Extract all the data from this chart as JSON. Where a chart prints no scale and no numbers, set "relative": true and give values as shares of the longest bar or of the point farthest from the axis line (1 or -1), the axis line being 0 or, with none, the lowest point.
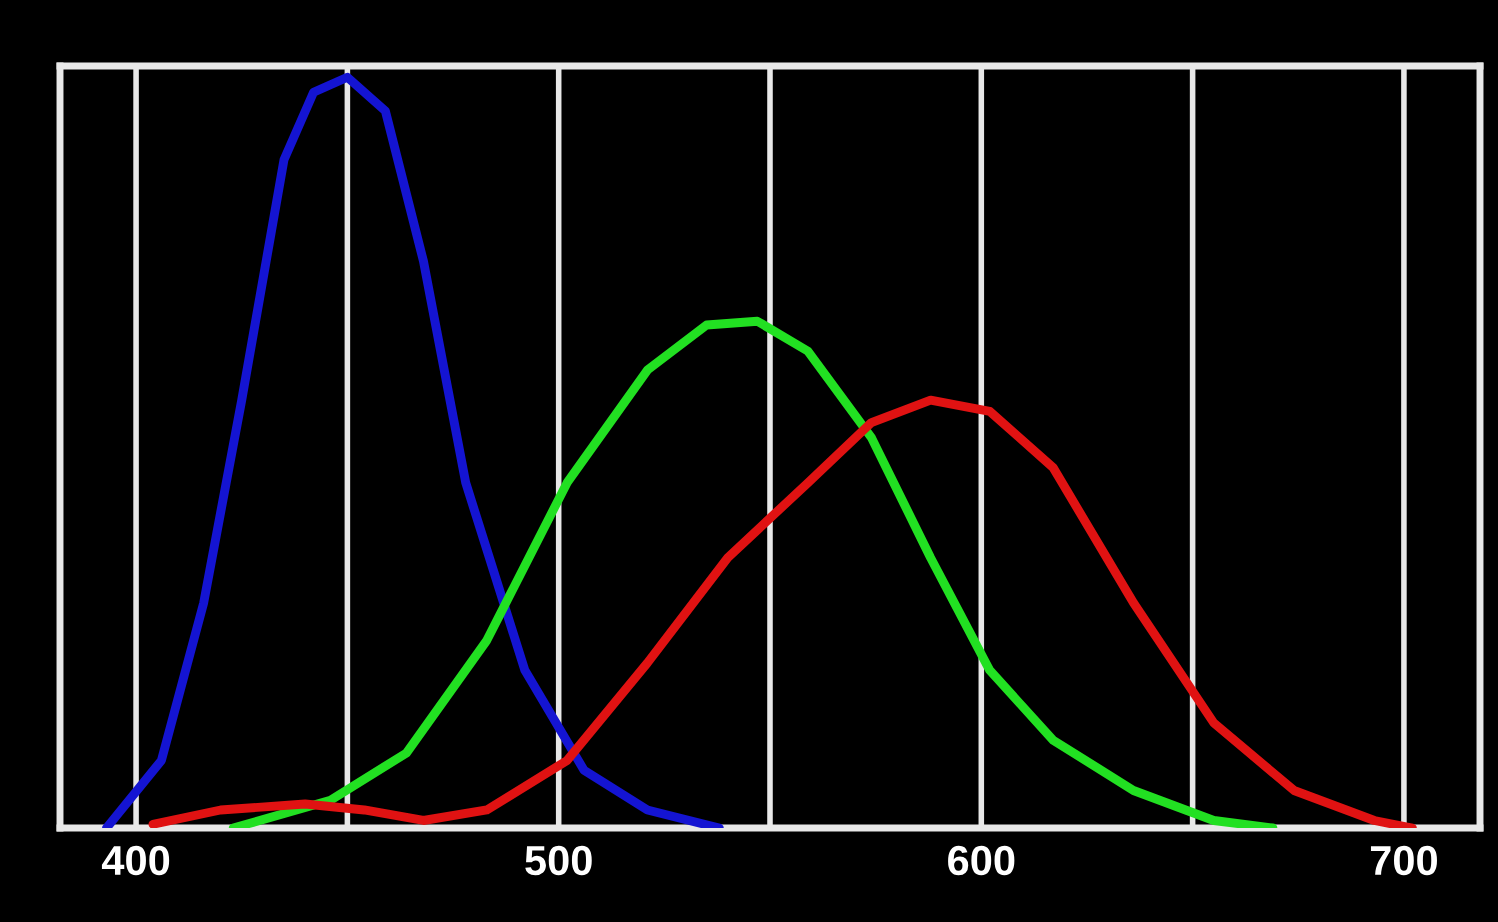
{
  "chart_data": {
    "type": "line",
    "relative": true,
    "xlim": [
      382,
      718
    ],
    "xticks": [
      400,
      {
        "value": 450,
        "label": null
      },
      500,
      {
        "value": 550,
        "label": null
      },
      600,
      {
        "value": 650,
        "label": null
      },
      700
    ],
    "grid": "x",
    "line_style": "solid",
    "marker": "none",
    "series": [
      {
        "color": "#1414d2",
        "x": [
          393,
          406,
          416,
          425,
          435,
          442,
          450,
          459,
          468,
          478,
          492,
          506,
          521,
          538
        ],
        "values": [
          0,
          0.09,
          0.3,
          0.57,
          0.89,
          0.98,
          1,
          0.955,
          0.755,
          0.46,
          0.21,
          0.077,
          0.024,
          0
        ]
      },
      {
        "color": "#22e022",
        "x": [
          423,
          446,
          464,
          483,
          502,
          521,
          535,
          547,
          559,
          574,
          588,
          602,
          617,
          636,
          655,
          669
        ],
        "values": [
          0,
          0.037,
          0.1,
          0.25,
          0.46,
          0.61,
          0.67,
          0.675,
          0.635,
          0.52,
          0.36,
          0.21,
          0.117,
          0.05,
          0.01,
          0
        ]
      },
      {
        "color": "#e01212",
        "x": [
          404,
          420,
          440,
          454,
          468,
          483,
          502,
          521,
          540,
          559,
          574,
          588,
          602,
          617,
          636,
          655,
          674,
          693,
          702
        ],
        "values": [
          0.005,
          0.024,
          0.032,
          0.024,
          0.01,
          0.024,
          0.09,
          0.22,
          0.36,
          0.46,
          0.54,
          0.57,
          0.555,
          0.48,
          0.3,
          0.14,
          0.05,
          0.01,
          0
        ]
      }
    ]
  }
}
